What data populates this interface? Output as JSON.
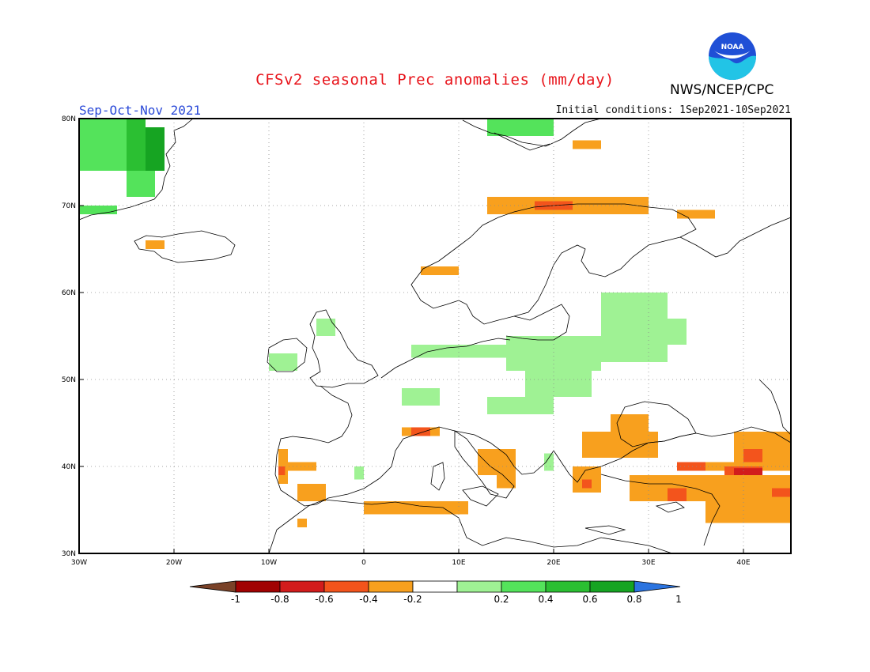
{
  "title": "CFSv2 seasonal Prec anomalies (mm/day)",
  "season": "Sep-Oct-Nov 2021",
  "initial_conditions": "Initial conditions: 1Sep2021-10Sep2021",
  "agency": "NWS/NCEP/CPC",
  "logo_text": "NOAA",
  "map": {
    "lon_range": [
      -30,
      45
    ],
    "lat_range": [
      30,
      80
    ],
    "lon_ticks": [
      {
        "value": -30,
        "label": "30W"
      },
      {
        "value": -20,
        "label": "20W"
      },
      {
        "value": -10,
        "label": "10W"
      },
      {
        "value": 0,
        "label": "0"
      },
      {
        "value": 10,
        "label": "10E"
      },
      {
        "value": 20,
        "label": "20E"
      },
      {
        "value": 30,
        "label": "30E"
      },
      {
        "value": 40,
        "label": "40E"
      }
    ],
    "lat_ticks": [
      {
        "value": 30,
        "label": "30N"
      },
      {
        "value": 40,
        "label": "40N"
      },
      {
        "value": 50,
        "label": "50N"
      },
      {
        "value": 60,
        "label": "60N"
      },
      {
        "value": 70,
        "label": "70N"
      },
      {
        "value": 80,
        "label": "80N"
      }
    ],
    "grid": "dotted",
    "anomaly_regions": [
      {
        "level": 0.6,
        "lon": [
          -25,
          -23
        ],
        "lat": [
          72,
          80
        ]
      },
      {
        "level": 0.8,
        "lon": [
          -23,
          -21
        ],
        "lat": [
          74,
          79
        ]
      },
      {
        "level": 0.4,
        "lon": [
          -30,
          -25
        ],
        "lat": [
          74,
          80
        ]
      },
      {
        "level": 0.4,
        "lon": [
          -25,
          -22
        ],
        "lat": [
          71,
          74
        ]
      },
      {
        "level": 0.4,
        "lon": [
          -30,
          -26
        ],
        "lat": [
          69,
          70
        ]
      },
      {
        "level": 0.4,
        "lon": [
          13,
          20
        ],
        "lat": [
          78,
          80
        ]
      },
      {
        "level": -0.4,
        "lon": [
          22,
          25
        ],
        "lat": [
          76.5,
          77.5
        ]
      },
      {
        "level": -0.4,
        "lon": [
          13,
          30
        ],
        "lat": [
          69,
          71
        ]
      },
      {
        "level": -0.6,
        "lon": [
          18,
          22
        ],
        "lat": [
          69.5,
          70.5
        ]
      },
      {
        "level": -0.4,
        "lon": [
          33,
          37
        ],
        "lat": [
          68.5,
          69.5
        ]
      },
      {
        "level": -0.4,
        "lon": [
          6,
          10
        ],
        "lat": [
          62,
          63
        ]
      },
      {
        "level": -0.4,
        "lon": [
          -23,
          -21
        ],
        "lat": [
          65,
          66
        ]
      },
      {
        "level": 0.2,
        "lon": [
          25,
          32
        ],
        "lat": [
          52,
          60
        ]
      },
      {
        "level": 0.2,
        "lon": [
          15,
          25
        ],
        "lat": [
          51,
          55
        ]
      },
      {
        "level": 0.2,
        "lon": [
          5,
          15
        ],
        "lat": [
          52.5,
          54
        ]
      },
      {
        "level": 0.2,
        "lon": [
          30,
          34
        ],
        "lat": [
          54,
          57
        ]
      },
      {
        "level": 0.2,
        "lon": [
          17,
          24
        ],
        "lat": [
          48,
          51
        ]
      },
      {
        "level": 0.2,
        "lon": [
          13,
          20
        ],
        "lat": [
          46,
          48
        ]
      },
      {
        "level": 0.2,
        "lon": [
          4,
          8
        ],
        "lat": [
          47,
          49
        ]
      },
      {
        "level": 0.2,
        "lon": [
          -10,
          -7
        ],
        "lat": [
          51,
          53
        ]
      },
      {
        "level": 0.2,
        "lon": [
          -5,
          -3
        ],
        "lat": [
          55,
          57
        ]
      },
      {
        "level": 0.2,
        "lon": [
          -1,
          0
        ],
        "lat": [
          38.5,
          40
        ]
      },
      {
        "level": 0.2,
        "lon": [
          19,
          20
        ],
        "lat": [
          39.5,
          41.5
        ]
      },
      {
        "level": -0.4,
        "lon": [
          23,
          31
        ],
        "lat": [
          41,
          44
        ]
      },
      {
        "level": -0.4,
        "lon": [
          26,
          30
        ],
        "lat": [
          44,
          46
        ]
      },
      {
        "level": -0.4,
        "lon": [
          22,
          25
        ],
        "lat": [
          37,
          40
        ]
      },
      {
        "level": -0.6,
        "lon": [
          23,
          24
        ],
        "lat": [
          37.5,
          38.5
        ]
      },
      {
        "level": -0.4,
        "lon": [
          33,
          45
        ],
        "lat": [
          39.5,
          40.5
        ]
      },
      {
        "level": -0.4,
        "lon": [
          39,
          45
        ],
        "lat": [
          40.5,
          44
        ]
      },
      {
        "level": -0.4,
        "lon": [
          28,
          45
        ],
        "lat": [
          36,
          39
        ]
      },
      {
        "level": -0.6,
        "lon": [
          38,
          42
        ],
        "lat": [
          39,
          40
        ]
      },
      {
        "level": -0.8,
        "lon": [
          39,
          42
        ],
        "lat": [
          39,
          39.8
        ]
      },
      {
        "level": -0.6,
        "lon": [
          40,
          42
        ],
        "lat": [
          40.5,
          42
        ]
      },
      {
        "level": -0.6,
        "lon": [
          33,
          36
        ],
        "lat": [
          39.5,
          40.5
        ]
      },
      {
        "level": -0.6,
        "lon": [
          32,
          34
        ],
        "lat": [
          36,
          37.5
        ]
      },
      {
        "level": -0.6,
        "lon": [
          43,
          45
        ],
        "lat": [
          36.5,
          37.5
        ]
      },
      {
        "level": -0.4,
        "lon": [
          36,
          45
        ],
        "lat": [
          33.5,
          36
        ]
      },
      {
        "level": -0.4,
        "lon": [
          -9,
          -8
        ],
        "lat": [
          38,
          42
        ]
      },
      {
        "level": -0.6,
        "lon": [
          -9,
          -8.3
        ],
        "lat": [
          39,
          40
        ]
      },
      {
        "level": -0.4,
        "lon": [
          -8,
          -5
        ],
        "lat": [
          39.5,
          40.5
        ]
      },
      {
        "level": -0.4,
        "lon": [
          -7,
          -4
        ],
        "lat": [
          36,
          38
        ]
      },
      {
        "level": -0.4,
        "lon": [
          -7,
          -6
        ],
        "lat": [
          33,
          34
        ]
      },
      {
        "level": -0.4,
        "lon": [
          0,
          11
        ],
        "lat": [
          34.5,
          36
        ]
      },
      {
        "level": -0.4,
        "lon": [
          4,
          8
        ],
        "lat": [
          43.5,
          44.5
        ]
      },
      {
        "level": -0.6,
        "lon": [
          5,
          7
        ],
        "lat": [
          43.5,
          44.5
        ]
      },
      {
        "level": -0.4,
        "lon": [
          12,
          16
        ],
        "lat": [
          39,
          42
        ]
      },
      {
        "level": -0.4,
        "lon": [
          14,
          16
        ],
        "lat": [
          37.5,
          39
        ]
      }
    ]
  },
  "colorbar": {
    "labels": [
      "-1",
      "-0.8",
      "-0.6",
      "-0.4",
      "-0.2",
      "0.2",
      "0.4",
      "0.6",
      "0.8",
      "1"
    ],
    "bins": [
      {
        "range": "<-1",
        "color": "#7a4228"
      },
      {
        "range": "-1 to -0.8",
        "color": "#a10202"
      },
      {
        "range": "-0.8 to -0.6",
        "color": "#d21c1c"
      },
      {
        "range": "-0.6 to -0.4",
        "color": "#f3541c"
      },
      {
        "range": "-0.4 to -0.2",
        "color": "#f8a01e"
      },
      {
        "range": "-0.2 to 0.2",
        "color": "#ffffff"
      },
      {
        "range": "0.2 to 0.4",
        "color": "#9ff294"
      },
      {
        "range": "0.4 to 0.6",
        "color": "#54e35b"
      },
      {
        "range": "0.6 to 0.8",
        "color": "#2bbf32"
      },
      {
        "range": "0.8 to 1",
        "color": "#16a422"
      },
      {
        "range": ">1",
        "color": "#2b74e0"
      }
    ]
  }
}
